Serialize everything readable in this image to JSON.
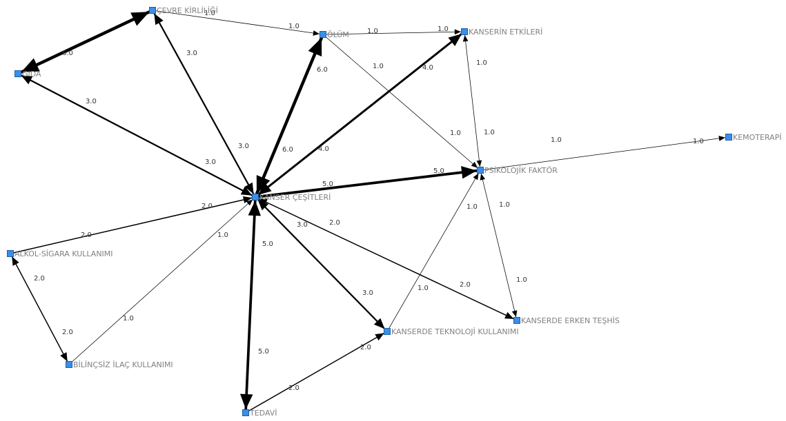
{
  "colors": {
    "node_fill": "#3b8fe6",
    "edge": "#000000",
    "node_label": "#808080",
    "edge_label": "#333333",
    "background": "#ffffff"
  },
  "nodes": [
    {
      "id": "cevre",
      "label": "ÇEVRE KİRLİLİĞİ"
    },
    {
      "id": "olum",
      "label": "ÖLÜM"
    },
    {
      "id": "etkiler",
      "label": "KANSERİN ETKİLERİ"
    },
    {
      "id": "gida",
      "label": "GIDA"
    },
    {
      "id": "kemo",
      "label": "KEMOTERAPİ"
    },
    {
      "id": "psiko",
      "label": "PSİKOLOJİK FAKTÖR"
    },
    {
      "id": "cesit",
      "label": "KANSER ÇEŞİTLERİ"
    },
    {
      "id": "alkol",
      "label": "ALKOL-SİGARA KULLANIMI"
    },
    {
      "id": "teshis",
      "label": "KANSERDE ERKEN TEŞHİS"
    },
    {
      "id": "tekno",
      "label": "KANSERDE TEKNOLOJİ KULLANIMI"
    },
    {
      "id": "ilac",
      "label": "BİLİNÇSİZ İLAÇ KULLANIMI"
    },
    {
      "id": "tedavi",
      "label": "TEDAVİ"
    }
  ],
  "edges": [
    {
      "from": "cevre",
      "to": "gida",
      "weight": 6.0,
      "bidirectional": true,
      "labels": [
        "6.0"
      ]
    },
    {
      "from": "cevre",
      "to": "olum",
      "weight": 1.0,
      "bidirectional": false,
      "labels": [
        "1.0",
        "1.0"
      ]
    },
    {
      "from": "olum",
      "to": "etkiler",
      "weight": 1.0,
      "bidirectional": false,
      "labels": [
        "1.0",
        "1.0"
      ]
    },
    {
      "from": "cevre",
      "to": "cesit",
      "weight": 3.0,
      "bidirectional": true,
      "labels": [
        "3.0",
        "3.0"
      ]
    },
    {
      "from": "gida",
      "to": "cesit",
      "weight": 3.0,
      "bidirectional": true,
      "labels": [
        "3.0",
        "3.0"
      ]
    },
    {
      "from": "olum",
      "to": "cesit",
      "weight": 6.0,
      "bidirectional": true,
      "labels": [
        "6.0",
        "6.0"
      ]
    },
    {
      "from": "etkiler",
      "to": "cesit",
      "weight": 4.0,
      "bidirectional": true,
      "labels": [
        "4.0",
        "4.0"
      ]
    },
    {
      "from": "olum",
      "to": "psiko",
      "weight": 1.0,
      "bidirectional": false,
      "labels": [
        "1.0",
        "1.0"
      ]
    },
    {
      "from": "etkiler",
      "to": "psiko",
      "weight": 1.0,
      "bidirectional": true,
      "labels": [
        "1.0",
        "1.0"
      ]
    },
    {
      "from": "cesit",
      "to": "psiko",
      "weight": 5.0,
      "bidirectional": false,
      "labels": [
        "5.0",
        "5.0"
      ]
    },
    {
      "from": "psiko",
      "to": "kemo",
      "weight": 1.0,
      "bidirectional": false,
      "labels": [
        "1.0",
        "1.0"
      ]
    },
    {
      "from": "psiko",
      "to": "teshis",
      "weight": 1.0,
      "bidirectional": true,
      "labels": [
        "1.0",
        "1.0"
      ]
    },
    {
      "from": "tekno",
      "to": "psiko",
      "weight": 1.0,
      "bidirectional": false,
      "labels": [
        "1.0",
        "1.0"
      ]
    },
    {
      "from": "alkol",
      "to": "cesit",
      "weight": 2.0,
      "bidirectional": false,
      "labels": [
        "2.0",
        "2.0"
      ]
    },
    {
      "from": "cesit",
      "to": "teshis",
      "weight": 2.0,
      "bidirectional": true,
      "labels": [
        "2.0",
        "2.0"
      ]
    },
    {
      "from": "cesit",
      "to": "tekno",
      "weight": 3.0,
      "bidirectional": true,
      "labels": [
        "3.0",
        "3.0"
      ]
    },
    {
      "from": "cesit",
      "to": "tedavi",
      "weight": 5.0,
      "bidirectional": true,
      "labels": [
        "5.0",
        "5.0"
      ]
    },
    {
      "from": "ilac",
      "to": "cesit",
      "weight": 1.0,
      "bidirectional": false,
      "labels": [
        "1.0",
        "1.0"
      ]
    },
    {
      "from": "alkol",
      "to": "ilac",
      "weight": 2.0,
      "bidirectional": true,
      "labels": [
        "2.0",
        "2.0"
      ]
    },
    {
      "from": "tedavi",
      "to": "tekno",
      "weight": 2.0,
      "bidirectional": false,
      "labels": [
        "2.0",
        "2.0"
      ]
    }
  ]
}
